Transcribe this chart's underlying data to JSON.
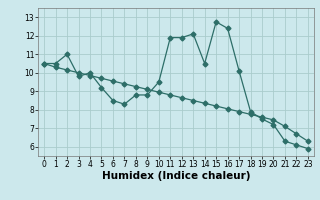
{
  "xlabel": "Humidex (Indice chaleur)",
  "bg_color": "#cce8ec",
  "grid_color": "#aacccc",
  "line_color": "#2d6e68",
  "xlim": [
    -0.5,
    23.5
  ],
  "ylim": [
    5.5,
    13.5
  ],
  "xticks": [
    0,
    1,
    2,
    3,
    4,
    5,
    6,
    7,
    8,
    9,
    10,
    11,
    12,
    13,
    14,
    15,
    16,
    17,
    18,
    19,
    20,
    21,
    22,
    23
  ],
  "yticks": [
    6,
    7,
    8,
    9,
    10,
    11,
    12,
    13
  ],
  "curve1_x": [
    0,
    1,
    2,
    3,
    4,
    5,
    6,
    7,
    8,
    9,
    10,
    11,
    12,
    13,
    14,
    15,
    16,
    17,
    18,
    19,
    20,
    21,
    22,
    23
  ],
  "curve1_y": [
    10.5,
    10.5,
    11.0,
    9.8,
    10.0,
    9.2,
    8.5,
    8.3,
    8.8,
    8.8,
    9.5,
    11.9,
    11.9,
    12.1,
    10.5,
    12.75,
    12.4,
    10.1,
    7.9,
    7.5,
    7.2,
    6.3,
    6.1,
    5.9
  ],
  "curve2_x": [
    0,
    1,
    2,
    3,
    4,
    5,
    6,
    7,
    8,
    9,
    10,
    11,
    12,
    13,
    14,
    15,
    16,
    17,
    18,
    19,
    20,
    21,
    22,
    23
  ],
  "curve2_y": [
    10.5,
    10.3,
    10.15,
    10.0,
    9.85,
    9.7,
    9.55,
    9.4,
    9.25,
    9.1,
    8.95,
    8.8,
    8.65,
    8.5,
    8.35,
    8.2,
    8.05,
    7.9,
    7.75,
    7.6,
    7.45,
    7.1,
    6.7,
    6.3
  ],
  "marker_size": 2.5,
  "line_width": 0.9,
  "tick_fontsize": 5.5,
  "xlabel_fontsize": 7.5
}
